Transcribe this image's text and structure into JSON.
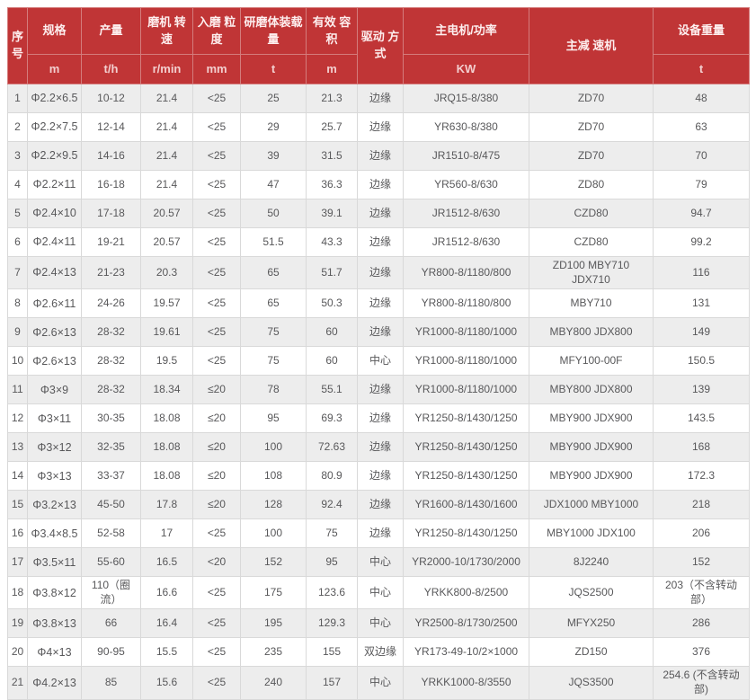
{
  "table": {
    "header": {
      "index": "序号",
      "spec": "规格",
      "spec_unit": "m",
      "output": "产量",
      "output_unit": "t/h",
      "speed": "磨机 转速",
      "speed_unit": "r/min",
      "feed_size": "入磨 粒度",
      "feed_size_unit": "mm",
      "media_load": "研磨体装载量",
      "media_load_unit": "t",
      "volume": "有效 容积",
      "volume_unit": "m",
      "drive": "驱动 方式",
      "motor": "主电机/功率",
      "motor_unit": "KW",
      "reducer": "主减 速机",
      "weight": "设备重量",
      "weight_unit": "t"
    },
    "rows": [
      [
        "1",
        "Φ2.2×6.5",
        "10-12",
        "21.4",
        "<25",
        "25",
        "21.3",
        "边缘",
        "JRQ15-8/380",
        "ZD70",
        "48"
      ],
      [
        "2",
        "Φ2.2×7.5",
        "12-14",
        "21.4",
        "<25",
        "29",
        "25.7",
        "边缘",
        "YR630-8/380",
        "ZD70",
        "63"
      ],
      [
        "3",
        "Φ2.2×9.5",
        "14-16",
        "21.4",
        "<25",
        "39",
        "31.5",
        "边缘",
        "JR1510-8/475",
        "ZD70",
        "70"
      ],
      [
        "4",
        "Φ2.2×11",
        "16-18",
        "21.4",
        "<25",
        "47",
        "36.3",
        "边缘",
        "YR560-8/630",
        "ZD80",
        "79"
      ],
      [
        "5",
        "Φ2.4×10",
        "17-18",
        "20.57",
        "<25",
        "50",
        "39.1",
        "边缘",
        "JR1512-8/630",
        "CZD80",
        "94.7"
      ],
      [
        "6",
        "Φ2.4×11",
        "19-21",
        "20.57",
        "<25",
        "51.5",
        "43.3",
        "边缘",
        "JR1512-8/630",
        "CZD80",
        "99.2"
      ],
      [
        "7",
        "Φ2.4×13",
        "21-23",
        "20.3",
        "<25",
        "65",
        "51.7",
        "边缘",
        "YR800-8/1180/800",
        "ZD100 MBY710 JDX710",
        "116"
      ],
      [
        "8",
        "Φ2.6×11",
        "24-26",
        "19.57",
        "<25",
        "65",
        "50.3",
        "边缘",
        "YR800-8/1180/800",
        "MBY710",
        "131"
      ],
      [
        "9",
        "Φ2.6×13",
        "28-32",
        "19.61",
        "<25",
        "75",
        "60",
        "边缘",
        "YR1000-8/1180/1000",
        "MBY800 JDX800",
        "149"
      ],
      [
        "10",
        "Φ2.6×13",
        "28-32",
        "19.5",
        "<25",
        "75",
        "60",
        "中心",
        "YR1000-8/1180/1000",
        "MFY100-00F",
        "150.5"
      ],
      [
        "11",
        "Φ3×9",
        "28-32",
        "18.34",
        "≤20",
        "78",
        "55.1",
        "边缘",
        "YR1000-8/1180/1000",
        "MBY800 JDX800",
        "139"
      ],
      [
        "12",
        "Φ3×11",
        "30-35",
        "18.08",
        "≤20",
        "95",
        "69.3",
        "边缘",
        "YR1250-8/1430/1250",
        "MBY900 JDX900",
        "143.5"
      ],
      [
        "13",
        "Φ3×12",
        "32-35",
        "18.08",
        "≤20",
        "100",
        "72.63",
        "边缘",
        "YR1250-8/1430/1250",
        "MBY900 JDX900",
        "168"
      ],
      [
        "14",
        "Φ3×13",
        "33-37",
        "18.08",
        "≤20",
        "108",
        "80.9",
        "边缘",
        "YR1250-8/1430/1250",
        "MBY900 JDX900",
        "172.3"
      ],
      [
        "15",
        "Φ3.2×13",
        "45-50",
        "17.8",
        "≤20",
        "128",
        "92.4",
        "边缘",
        "YR1600-8/1430/1600",
        "JDX1000 MBY1000",
        "218"
      ],
      [
        "16",
        "Φ3.4×8.5",
        "52-58",
        "17",
        "<25",
        "100",
        "75",
        "边缘",
        "YR1250-8/1430/1250",
        "MBY1000 JDX100",
        "206"
      ],
      [
        "17",
        "Φ3.5×11",
        "55-60",
        "16.5",
        "<20",
        "152",
        "95",
        "中心",
        "YR2000-10/1730/2000",
        "8J2240",
        "152"
      ],
      [
        "18",
        "Φ3.8×12",
        "110（圈流）",
        "16.6",
        "<25",
        "175",
        "123.6",
        "中心",
        "YRKK800-8/2500",
        "JQS2500",
        "203（不含转动部）"
      ],
      [
        "19",
        "Φ3.8×13",
        "66",
        "16.4",
        "<25",
        "195",
        "129.3",
        "中心",
        "YR2500-8/1730/2500",
        "MFYX250",
        "286"
      ],
      [
        "20",
        "Φ4×13",
        "90-95",
        "15.5",
        "<25",
        "235",
        "155",
        "双边缘",
        "YR173-49-10/2×1000",
        "ZD150",
        "376"
      ],
      [
        "21",
        "Φ4.2×13",
        "85",
        "15.6",
        "<25",
        "240",
        "157",
        "中心",
        "YRKK1000-8/3550",
        "JQS3500",
        "254.6 (不含转动部)"
      ]
    ]
  },
  "colors": {
    "header_bg": "#c03536",
    "header_text": "#fdeeee",
    "header_unit_text": "#f3cfcf",
    "stripe_bg": "#ededed",
    "body_text": "#58585a",
    "grid_line": "#d9d9d9"
  }
}
